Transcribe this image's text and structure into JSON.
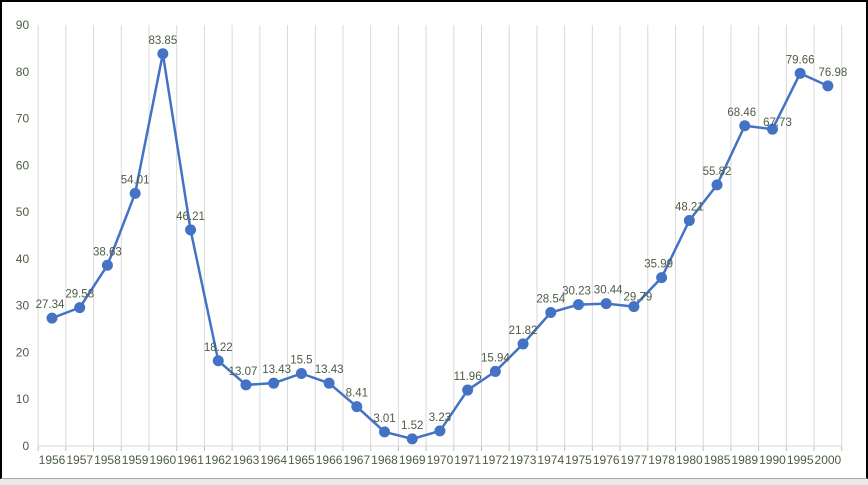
{
  "chart_data": {
    "type": "line",
    "title": "",
    "xlabel": "",
    "ylabel": "",
    "legend": "none",
    "gridlines": "vertical-only",
    "marker_style": "circle",
    "categories": [
      "1956",
      "1957",
      "1958",
      "1959",
      "1960",
      "1961",
      "1962",
      "1963",
      "1964",
      "1965",
      "1966",
      "1967",
      "1968",
      "1969",
      "1970",
      "1971",
      "1972",
      "1973",
      "1974",
      "1975",
      "1976",
      "1977",
      "1978",
      "1980",
      "1985",
      "1989",
      "1990",
      "1995",
      "2000"
    ],
    "values": [
      27.34,
      29.58,
      38.63,
      54.01,
      83.85,
      46.21,
      18.22,
      13.07,
      13.43,
      15.5,
      13.43,
      8.41,
      3.01,
      1.52,
      3.23,
      11.96,
      15.94,
      21.82,
      28.54,
      30.23,
      30.44,
      29.79,
      35.99,
      48.21,
      55.82,
      68.46,
      67.73,
      79.66,
      76.98
    ],
    "point_labels": [
      "27.34",
      "29.58",
      "38.63",
      "54.01",
      "83.85",
      "46.21",
      "18.22",
      "13.07",
      "13.43",
      "15.5",
      "13.43",
      "8.41",
      "3.01",
      "1.52",
      "3.23",
      "11.96",
      "15.94",
      "21.82",
      "28.54",
      "30.23",
      "30.44",
      "29.79",
      "35.99",
      "48.21",
      "55.82",
      "68.46",
      "67.73",
      "79.66",
      "76.98"
    ],
    "ylim": [
      0,
      90
    ],
    "yticks": [
      0,
      10,
      20,
      30,
      40,
      50,
      60,
      70,
      80,
      90
    ],
    "colors": {
      "line": "#4472C4",
      "marker": "#4472C4",
      "gridline": "#D9D9D9",
      "axis_line": "#D9D9D9",
      "tick_mark": "#BFBFBF",
      "label_text": "#4d5c45",
      "frame_border": "#000000"
    }
  }
}
